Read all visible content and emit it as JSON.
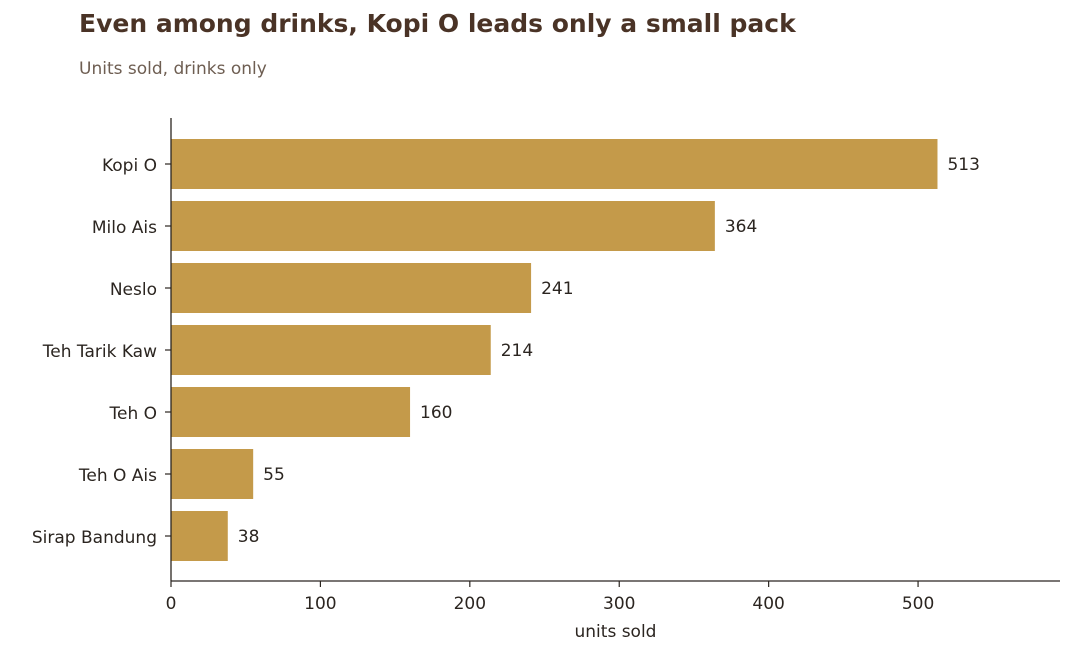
{
  "chart_data": {
    "type": "bar",
    "orientation": "horizontal",
    "title": "Even among drinks, Kopi O leads only a small pack",
    "subtitle": "Units sold, drinks only",
    "xlabel": "units sold",
    "ylabel": "",
    "categories": [
      "Kopi O",
      "Milo Ais",
      "Neslo",
      "Teh Tarik Kaw",
      "Teh O",
      "Teh O Ais",
      "Sirap Bandung"
    ],
    "values": [
      513,
      364,
      241,
      214,
      160,
      55,
      38
    ],
    "xlim": [
      0,
      595
    ],
    "xticks": [
      0,
      100,
      200,
      300,
      400,
      500
    ],
    "grid": false,
    "legend": "none",
    "bar_color": "#c49a4a",
    "axis_color": "#2b2520",
    "data_labels": true
  }
}
